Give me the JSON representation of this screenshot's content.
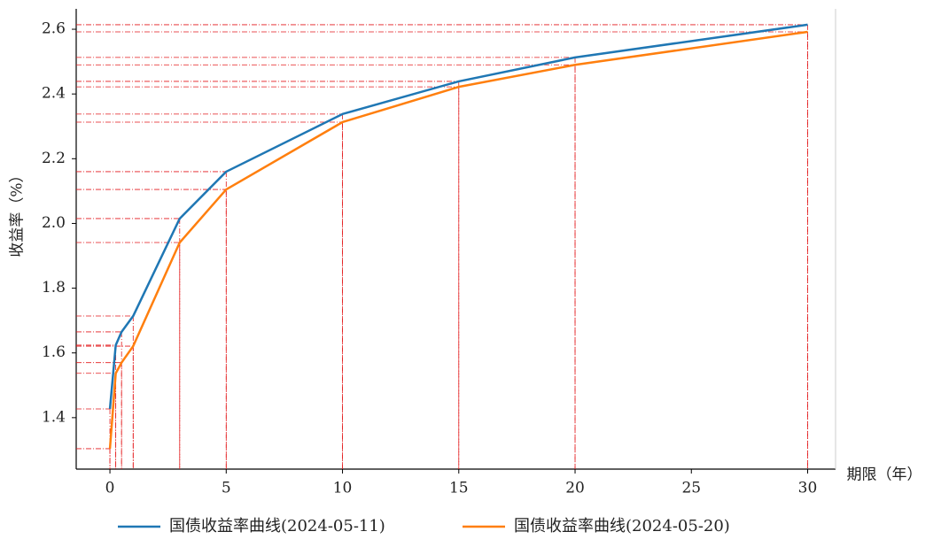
{
  "chart_data": {
    "type": "line",
    "x": [
      0,
      0.25,
      0.5,
      1,
      3,
      5,
      10,
      15,
      20,
      30
    ],
    "series": [
      {
        "name": "国债收益率曲线(2024-05-11)",
        "color": "#1f77b4",
        "values": [
          1.427,
          1.624,
          1.665,
          1.714,
          2.015,
          2.16,
          2.338,
          2.439,
          2.513,
          2.614
        ]
      },
      {
        "name": "国债收益率曲线(2024-05-20)",
        "color": "#ff7f0e",
        "values": [
          1.304,
          1.537,
          1.57,
          1.621,
          1.941,
          2.105,
          2.313,
          2.422,
          2.49,
          2.592
        ]
      }
    ],
    "xlabel": "期限（年）",
    "ylabel": "收益率（%）",
    "xlim": [
      -1.45,
      31.2
    ],
    "ylim": [
      1.241,
      2.663
    ],
    "xticks": [
      0,
      5,
      10,
      15,
      20,
      25,
      30
    ],
    "yticks": [
      1.4,
      1.6,
      1.8,
      {
        "value": 2,
        "label": "2.0"
      },
      2.2,
      2.4,
      2.6
    ],
    "guides": true,
    "guide_color": "#e31a1c",
    "legend": "bottom"
  }
}
